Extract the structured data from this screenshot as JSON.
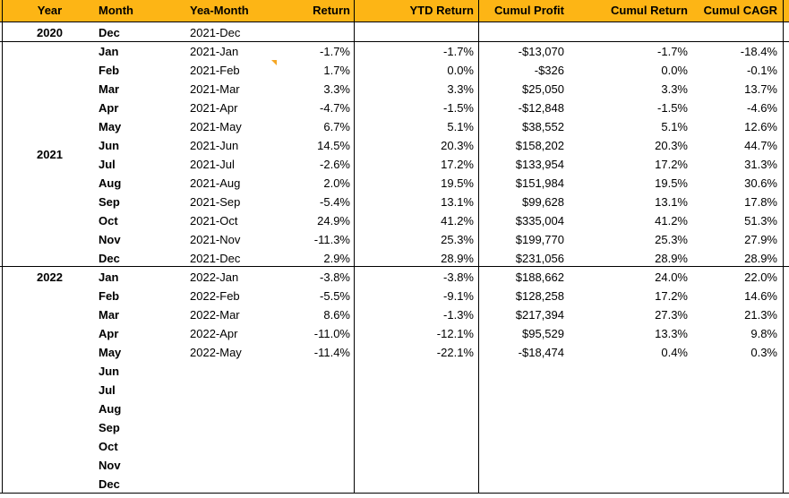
{
  "headers": {
    "year": "Year",
    "month": "Month",
    "yea_month": "Yea-Month",
    "return": "Return",
    "ytd_return": "YTD Return",
    "cumul_profit": "Cumul Profit",
    "cumul_return": "Cumul Return",
    "cumul_cagr": "Cumul CAGR"
  },
  "year_labels": [
    "2020",
    "2021",
    "2022"
  ],
  "rows": [
    {
      "month": "Dec",
      "ym": "2021-Dec",
      "ret": "",
      "ytd": "",
      "profit": "",
      "cret": "",
      "cagr": ""
    },
    {
      "month": "Jan",
      "ym": "2021-Jan",
      "ret": "-1.7%",
      "ytd": "-1.7%",
      "profit": "-$13,070",
      "cret": "-1.7%",
      "cagr": "-18.4%"
    },
    {
      "month": "Feb",
      "ym": "2021-Feb",
      "ret": "1.7%",
      "ytd": "0.0%",
      "profit": "-$326",
      "cret": "0.0%",
      "cagr": "-0.1%"
    },
    {
      "month": "Mar",
      "ym": "2021-Mar",
      "ret": "3.3%",
      "ytd": "3.3%",
      "profit": "$25,050",
      "cret": "3.3%",
      "cagr": "13.7%"
    },
    {
      "month": "Apr",
      "ym": "2021-Apr",
      "ret": "-4.7%",
      "ytd": "-1.5%",
      "profit": "-$12,848",
      "cret": "-1.5%",
      "cagr": "-4.6%"
    },
    {
      "month": "May",
      "ym": "2021-May",
      "ret": "6.7%",
      "ytd": "5.1%",
      "profit": "$38,552",
      "cret": "5.1%",
      "cagr": "12.6%"
    },
    {
      "month": "Jun",
      "ym": "2021-Jun",
      "ret": "14.5%",
      "ytd": "20.3%",
      "profit": "$158,202",
      "cret": "20.3%",
      "cagr": "44.7%"
    },
    {
      "month": "Jul",
      "ym": "2021-Jul",
      "ret": "-2.6%",
      "ytd": "17.2%",
      "profit": "$133,954",
      "cret": "17.2%",
      "cagr": "31.3%"
    },
    {
      "month": "Aug",
      "ym": "2021-Aug",
      "ret": "2.0%",
      "ytd": "19.5%",
      "profit": "$151,984",
      "cret": "19.5%",
      "cagr": "30.6%"
    },
    {
      "month": "Sep",
      "ym": "2021-Sep",
      "ret": "-5.4%",
      "ytd": "13.1%",
      "profit": "$99,628",
      "cret": "13.1%",
      "cagr": "17.8%"
    },
    {
      "month": "Oct",
      "ym": "2021-Oct",
      "ret": "24.9%",
      "ytd": "41.2%",
      "profit": "$335,004",
      "cret": "41.2%",
      "cagr": "51.3%"
    },
    {
      "month": "Nov",
      "ym": "2021-Nov",
      "ret": "-11.3%",
      "ytd": "25.3%",
      "profit": "$199,770",
      "cret": "25.3%",
      "cagr": "27.9%"
    },
    {
      "month": "Dec",
      "ym": "2021-Dec",
      "ret": "2.9%",
      "ytd": "28.9%",
      "profit": "$231,056",
      "cret": "28.9%",
      "cagr": "28.9%"
    },
    {
      "month": "Jan",
      "ym": "2022-Jan",
      "ret": "-3.8%",
      "ytd": "-3.8%",
      "profit": "$188,662",
      "cret": "24.0%",
      "cagr": "22.0%"
    },
    {
      "month": "Feb",
      "ym": "2022-Feb",
      "ret": "-5.5%",
      "ytd": "-9.1%",
      "profit": "$128,258",
      "cret": "17.2%",
      "cagr": "14.6%"
    },
    {
      "month": "Mar",
      "ym": "2022-Mar",
      "ret": "8.6%",
      "ytd": "-1.3%",
      "profit": "$217,394",
      "cret": "27.3%",
      "cagr": "21.3%"
    },
    {
      "month": "Apr",
      "ym": "2022-Apr",
      "ret": "-11.0%",
      "ytd": "-12.1%",
      "profit": "$95,529",
      "cret": "13.3%",
      "cagr": "9.8%"
    },
    {
      "month": "May",
      "ym": "2022-May",
      "ret": "-11.4%",
      "ytd": "-22.1%",
      "profit": "-$18,474",
      "cret": "0.4%",
      "cagr": "0.3%"
    },
    {
      "month": "Jun",
      "ym": "",
      "ret": "",
      "ytd": "",
      "profit": "",
      "cret": "",
      "cagr": ""
    },
    {
      "month": "Jul",
      "ym": "",
      "ret": "",
      "ytd": "",
      "profit": "",
      "cret": "",
      "cagr": ""
    },
    {
      "month": "Aug",
      "ym": "",
      "ret": "",
      "ytd": "",
      "profit": "",
      "cret": "",
      "cagr": ""
    },
    {
      "month": "Sep",
      "ym": "",
      "ret": "",
      "ytd": "",
      "profit": "",
      "cret": "",
      "cagr": ""
    },
    {
      "month": "Oct",
      "ym": "",
      "ret": "",
      "ytd": "",
      "profit": "",
      "cret": "",
      "cagr": ""
    },
    {
      "month": "Nov",
      "ym": "",
      "ret": "",
      "ytd": "",
      "profit": "",
      "cret": "",
      "cagr": ""
    },
    {
      "month": "Dec",
      "ym": "",
      "ret": "",
      "ytd": "",
      "profit": "",
      "cret": "",
      "cagr": ""
    }
  ],
  "colors": {
    "header_bg": "#fdb515",
    "grid_line": "#000000",
    "comment_marker": "#f5a623"
  }
}
